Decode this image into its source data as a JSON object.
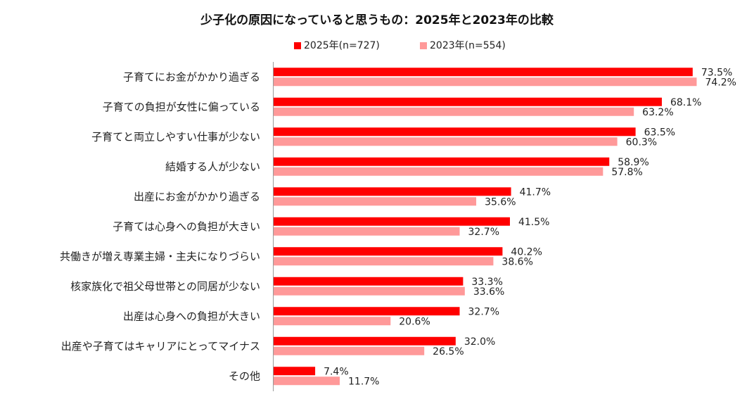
{
  "chart_data": {
    "type": "bar",
    "orientation": "horizontal",
    "title": "少子化の原因になっていると思うもの：2025年と2023年の比較",
    "categories": [
      "子育てにお金がかかり過ぎる",
      "子育ての負担が女性に偏っている",
      "子育てと両立しやすい仕事が少ない",
      "結婚する人が少ない",
      "出産にお金がかかり過ぎる",
      "子育ては心身への負担が大きい",
      "共働きが増え専業主婦・主夫になりづらい",
      "核家族化で祖父母世帯との同居が少ない",
      "出産は心身への負担が大きい",
      "出産や子育てはキャリアにとってマイナス",
      "その他"
    ],
    "series": [
      {
        "name": "2025年(n=727)",
        "color": "#ff0000",
        "values": [
          73.5,
          68.1,
          63.5,
          58.9,
          41.7,
          41.5,
          40.2,
          33.3,
          32.7,
          32.0,
          7.4
        ],
        "labels": [
          "73.5%",
          "68.1%",
          "63.5%",
          "58.9%",
          "41.7%",
          "41.5%",
          "40.2%",
          "33.3%",
          "32.7%",
          "32.0%",
          "7.4%"
        ]
      },
      {
        "name": "2023年(n=554)",
        "color": "#ff9999",
        "values": [
          74.2,
          63.2,
          60.3,
          57.8,
          35.6,
          32.7,
          38.6,
          33.6,
          20.6,
          26.5,
          11.7
        ],
        "labels": [
          "74.2%",
          "63.2%",
          "60.3%",
          "57.8%",
          "35.6%",
          "32.7%",
          "38.6%",
          "33.6%",
          "20.6%",
          "26.5%",
          "11.7%"
        ]
      }
    ],
    "xlim": [
      0,
      80
    ],
    "xlabel": "",
    "ylabel": "",
    "legend": "top-center",
    "grid": false
  }
}
